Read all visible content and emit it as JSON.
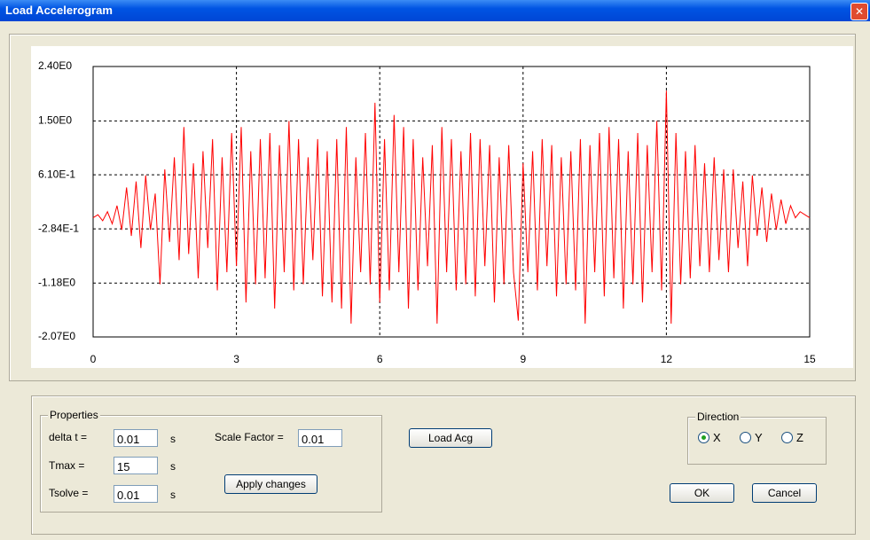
{
  "window": {
    "title": "Load Accelerogram"
  },
  "chart_data": {
    "type": "line",
    "color": "#ff0000",
    "grid": true,
    "grid_style": "dashed",
    "xlim": [
      0,
      15
    ],
    "xticks": [
      0,
      3,
      6,
      9,
      12,
      15
    ],
    "ylim": [
      -2.07,
      2.4
    ],
    "yticks": [
      {
        "value": -2.07,
        "label": "-2.07E0"
      },
      {
        "value": -1.18,
        "label": "-1.18E0"
      },
      {
        "value": -0.284,
        "label": "-2.84E-1"
      },
      {
        "value": 0.61,
        "label": "6.10E-1"
      },
      {
        "value": 1.5,
        "label": "1.50E0"
      },
      {
        "value": 2.4,
        "label": "2.40E0"
      }
    ],
    "x": [
      0,
      0.1,
      0.2,
      0.3,
      0.4,
      0.5,
      0.6,
      0.7,
      0.8,
      0.9,
      1,
      1.1,
      1.2,
      1.3,
      1.4,
      1.5,
      1.6,
      1.7,
      1.8,
      1.9,
      2,
      2.1,
      2.2,
      2.3,
      2.4,
      2.5,
      2.6,
      2.7,
      2.8,
      2.9,
      3,
      3.1,
      3.2,
      3.3,
      3.4,
      3.5,
      3.6,
      3.7,
      3.8,
      3.9,
      4,
      4.1,
      4.2,
      4.3,
      4.4,
      4.5,
      4.6,
      4.7,
      4.8,
      4.9,
      5,
      5.1,
      5.2,
      5.3,
      5.4,
      5.5,
      5.6,
      5.7,
      5.8,
      5.9,
      6,
      6.1,
      6.2,
      6.3,
      6.4,
      6.5,
      6.6,
      6.7,
      6.8,
      6.9,
      7,
      7.1,
      7.2,
      7.3,
      7.4,
      7.5,
      7.6,
      7.7,
      7.8,
      7.9,
      8,
      8.1,
      8.2,
      8.3,
      8.4,
      8.5,
      8.6,
      8.7,
      8.8,
      8.9,
      9,
      9.1,
      9.2,
      9.3,
      9.4,
      9.5,
      9.6,
      9.7,
      9.8,
      9.9,
      10,
      10.1,
      10.2,
      10.3,
      10.4,
      10.5,
      10.6,
      10.7,
      10.8,
      10.9,
      11,
      11.1,
      11.2,
      11.3,
      11.4,
      11.5,
      11.6,
      11.7,
      11.8,
      11.9,
      12,
      12.1,
      12.2,
      12.3,
      12.4,
      12.5,
      12.6,
      12.7,
      12.8,
      12.9,
      13,
      13.1,
      13.2,
      13.3,
      13.4,
      13.5,
      13.6,
      13.7,
      13.8,
      13.9,
      14,
      14.1,
      14.2,
      14.3,
      14.4,
      14.5,
      14.6,
      14.7,
      14.8,
      14.9,
      15
    ],
    "values": [
      -0.1,
      -0.05,
      -0.15,
      0.0,
      -0.2,
      0.1,
      -0.3,
      0.4,
      -0.4,
      0.5,
      -0.6,
      0.6,
      -0.3,
      0.3,
      -1.2,
      0.7,
      -0.5,
      0.9,
      -0.8,
      1.4,
      -0.7,
      0.8,
      -1.1,
      1.0,
      -0.6,
      1.2,
      -1.3,
      0.9,
      -1.0,
      1.3,
      -0.9,
      1.4,
      -1.5,
      1.0,
      -1.2,
      1.2,
      -1.1,
      1.3,
      -1.6,
      1.1,
      -1.0,
      1.5,
      -1.3,
      1.2,
      -1.2,
      0.9,
      -0.8,
      1.2,
      -1.4,
      1.0,
      -1.5,
      1.2,
      -1.6,
      1.4,
      -1.85,
      0.9,
      -1.0,
      1.3,
      -1.2,
      1.8,
      -1.5,
      1.2,
      -1.3,
      1.6,
      -1.0,
      1.4,
      -1.6,
      1.2,
      -1.3,
      0.9,
      -0.9,
      1.1,
      -1.85,
      1.4,
      -1.0,
      1.2,
      -1.3,
      1.0,
      -1.2,
      1.3,
      -1.4,
      1.2,
      -0.9,
      1.1,
      -1.5,
      0.9,
      -1.2,
      1.1,
      -1.0,
      -1.8,
      0.8,
      -1.0,
      1.0,
      -1.3,
      1.2,
      -0.9,
      1.1,
      -1.4,
      0.9,
      -1.2,
      1.0,
      -1.3,
      1.2,
      -1.85,
      1.1,
      -1.0,
      1.3,
      -1.4,
      1.4,
      -1.1,
      1.2,
      -1.6,
      1.0,
      -1.2,
      1.3,
      -1.5,
      1.1,
      -1.0,
      1.5,
      -1.3,
      2.0,
      -1.85,
      1.3,
      -1.2,
      1.0,
      -1.1,
      1.1,
      -0.9,
      0.8,
      -1.0,
      0.9,
      -0.8,
      0.7,
      -1.0,
      0.7,
      -0.6,
      0.5,
      -0.9,
      0.6,
      -0.4,
      0.4,
      -0.5,
      0.3,
      -0.3,
      0.2,
      -0.2,
      0.1,
      -0.1,
      0.0,
      -0.05,
      -0.1
    ]
  },
  "properties": {
    "label": "Properties",
    "delta_t": {
      "label": "delta t =",
      "value": "0.01",
      "unit": "s"
    },
    "tmax": {
      "label": "Tmax =",
      "value": "15",
      "unit": "s"
    },
    "tsolve": {
      "label": "Tsolve =",
      "value": "0.01",
      "unit": "s"
    },
    "scale_factor": {
      "label": "Scale Factor =",
      "value": "0.01"
    },
    "apply": "Apply changes"
  },
  "load_button": "Load Acg",
  "direction": {
    "label": "Direction",
    "options": [
      "X",
      "Y",
      "Z"
    ],
    "selected": 0
  },
  "ok": "OK",
  "cancel": "Cancel"
}
